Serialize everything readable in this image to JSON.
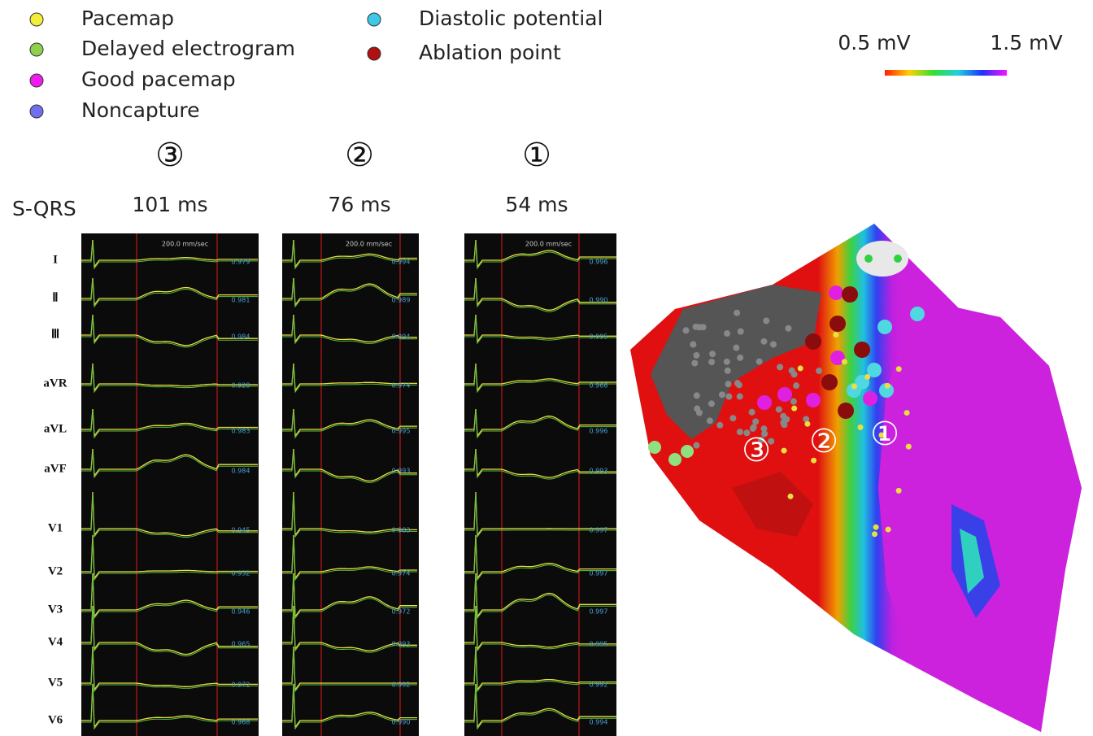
{
  "legend": [
    {
      "label": "Pacemap",
      "color": "#f2ee3a"
    },
    {
      "label": "Delayed electrogram",
      "color": "#8fd14f"
    },
    {
      "label": "Good pacemap",
      "color": "#ee1cee"
    },
    {
      "label": "Noncapture",
      "color": "#7070ee"
    },
    {
      "label": "Diastolic potential",
      "color": "#3cc8e6"
    },
    {
      "label": "Ablation point",
      "color": "#b01010"
    }
  ],
  "colorbar": {
    "min_label": "0.5 mV",
    "max_label": "1.5 mV"
  },
  "row_label": "S-QRS",
  "leads": [
    "I",
    "Ⅱ",
    "Ⅲ",
    "aVR",
    "aVL",
    "aVF",
    "V1",
    "V2",
    "V3",
    "V4",
    "V5",
    "V6"
  ],
  "panels": [
    {
      "marker": "③",
      "s_qrs": "101 ms",
      "speed": "200.0 mm/sec",
      "correlations": [
        "0.979",
        "0.981",
        "0.984",
        "0.928",
        "0.983",
        "0.984",
        "0.945",
        "0.932",
        "0.946",
        "0.965",
        "0.972",
        "0.968"
      ]
    },
    {
      "marker": "②",
      "s_qrs": "76 ms",
      "speed": "200.0 mm/sec",
      "correlations": [
        "0.994",
        "0.989",
        "0.994",
        "0.974",
        "0.995",
        "0.993",
        "0.983",
        "0.974",
        "0.972",
        "0.993",
        "0.992",
        "0.990"
      ]
    },
    {
      "marker": "①",
      "s_qrs": "54 ms",
      "speed": "200.0 mm/sec",
      "correlations": [
        "0.996",
        "0.990",
        "0.995",
        "0.966",
        "0.996",
        "0.993",
        "0.997",
        "0.997",
        "0.997",
        "0.995",
        "0.992",
        "0.994"
      ]
    }
  ],
  "map": {
    "markers": [
      "③",
      "②",
      "①"
    ]
  }
}
